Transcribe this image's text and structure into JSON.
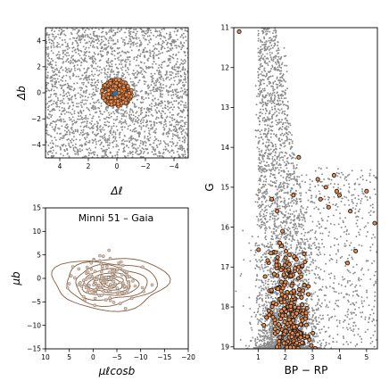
{
  "figure": {
    "background": "#ffffff",
    "colors": {
      "field_points": "#8c8c8c",
      "member_fill": "#f08c4a",
      "member_edge": "#4a3020",
      "contour": "#8b5a3c",
      "center_marker": "#1f77b4",
      "axis": "#000000"
    }
  },
  "chart_data": [
    {
      "id": "sky",
      "type": "scatter",
      "title": "",
      "xlabel": "Δℓ",
      "ylabel": "Δb",
      "xlim": [
        -5,
        5
      ],
      "ylim": [
        -5,
        5
      ],
      "x_inverted": true,
      "xticks": [
        4,
        2,
        0,
        -2,
        -4
      ],
      "xtick_labels": [
        "4",
        "2",
        "0",
        "−2",
        "−4"
      ],
      "yticks": [
        -4,
        -2,
        0,
        2,
        4
      ],
      "ytick_labels": [
        "−4",
        "−2",
        "0",
        "2",
        "4"
      ],
      "grid": false,
      "series": [
        {
          "role": "field stars",
          "distribution": "uniform",
          "count": 2600,
          "xrange": [
            -5,
            5
          ],
          "yrange": [
            -5,
            5
          ]
        },
        {
          "role": "cluster members",
          "distribution": "disk",
          "count": 220,
          "center": [
            0,
            0
          ],
          "radius": 1.05
        },
        {
          "role": "cluster centre",
          "points": [
            [
              0.1,
              -0.05
            ]
          ]
        }
      ]
    },
    {
      "id": "pm",
      "type": "scatter",
      "title": "Minni 51  –  Gaia",
      "xlabel": "μℓcosb",
      "ylabel": "μb",
      "xlim": [
        10,
        -20
      ],
      "ylim": [
        -15,
        15
      ],
      "xticks": [
        10,
        5,
        0,
        -5,
        -10,
        -15,
        -20
      ],
      "xtick_labels": [
        "10",
        "5",
        "0",
        "−5",
        "−10",
        "−15",
        "−20"
      ],
      "yticks": [
        -15,
        -10,
        -5,
        0,
        5,
        10,
        15
      ],
      "ytick_labels": [
        "−15",
        "−10",
        "−5",
        "0",
        "5",
        "10",
        "15"
      ],
      "grid": false,
      "series": [
        {
          "role": "proper motion members",
          "distribution": "gaussian",
          "count": 140,
          "center": [
            -3.2,
            -0.8
          ],
          "sigma": [
            3.4,
            2.2
          ]
        },
        {
          "role": "density contours",
          "center": [
            -3.5,
            -1.0
          ],
          "levels": [
            [
              12,
              5.5
            ],
            [
              9.5,
              4.5
            ],
            [
              7.5,
              3.6
            ],
            [
              5.8,
              2.8
            ],
            [
              4.3,
              2.1
            ],
            [
              3.0,
              1.5
            ],
            [
              1.9,
              1.0
            ],
            [
              1.0,
              0.55
            ]
          ]
        }
      ]
    },
    {
      "id": "cmd",
      "type": "scatter",
      "title": "",
      "xlabel": "BP − RP",
      "ylabel": "G",
      "xlim": [
        0.1,
        5.4
      ],
      "ylim": [
        19.05,
        11
      ],
      "xticks": [
        1,
        2,
        3,
        4,
        5
      ],
      "xtick_labels": [
        "1",
        "2",
        "3",
        "4",
        "5"
      ],
      "yticks": [
        11,
        12,
        13,
        14,
        15,
        16,
        17,
        18,
        19
      ],
      "ytick_labels": [
        "11",
        "12",
        "13",
        "14",
        "15",
        "16",
        "17",
        "18",
        "19"
      ],
      "grid": false,
      "series": [
        {
          "role": "field stars",
          "count": 4200
        },
        {
          "role": "cluster members",
          "count": 230
        },
        {
          "role": "bright members",
          "points": [
            [
              0.3,
              11.1
            ],
            [
              2.5,
              14.25
            ],
            [
              3.2,
              14.8
            ],
            [
              3.8,
              14.7
            ],
            [
              3.5,
              15.0
            ],
            [
              3.9,
              15.1
            ],
            [
              4.4,
              15.6
            ],
            [
              5.0,
              15.1
            ],
            [
              5.3,
              15.9
            ],
            [
              4.6,
              16.6
            ],
            [
              4.3,
              16.9
            ],
            [
              1.5,
              15.3
            ],
            [
              1.7,
              15.6
            ],
            [
              2.3,
              15.2
            ],
            [
              3.3,
              15.3
            ],
            [
              3.6,
              15.5
            ],
            [
              4.0,
              15.2
            ],
            [
              1.9,
              16.1
            ]
          ]
        }
      ]
    }
  ]
}
